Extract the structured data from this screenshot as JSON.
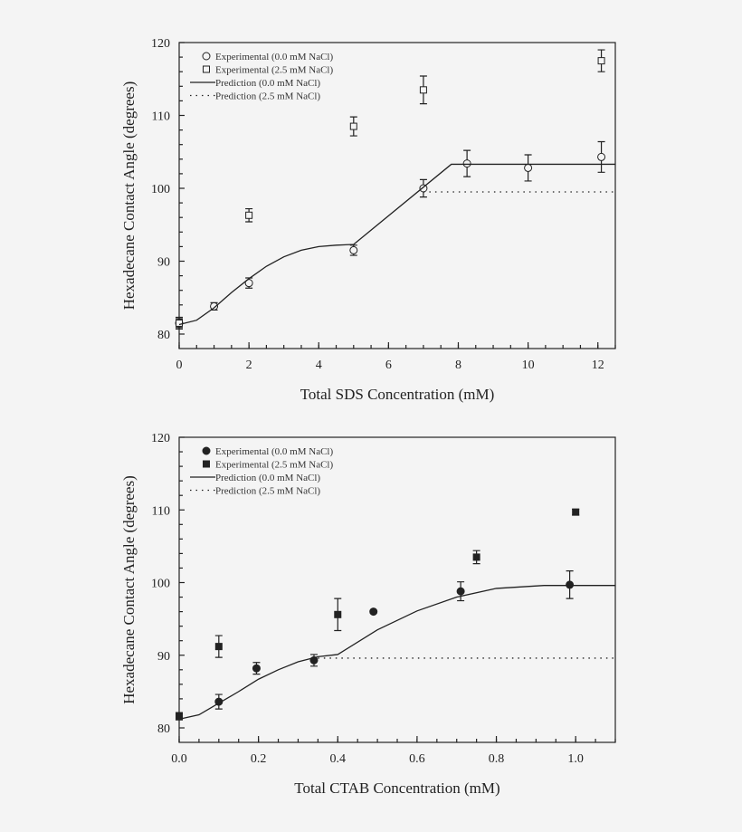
{
  "chart_data": [
    {
      "type": "scatter",
      "xlabel": "Total SDS Concentration (mM)",
      "ylabel": "Hexadecane Contact Angle (degrees)",
      "xlim": [
        0,
        12.5
      ],
      "ylim": [
        80,
        120
      ],
      "xticks": [
        0,
        2,
        4,
        6,
        8,
        10,
        12
      ],
      "yticks": [
        80,
        90,
        100,
        110,
        120
      ],
      "legend_position": "top-left",
      "marker_fill": "open",
      "series": [
        {
          "name": "Experimental (0.0 mM NaCl)",
          "kind": "points",
          "marker": "circle",
          "x": [
            0,
            1,
            2,
            5,
            7,
            8.25,
            10,
            12.1
          ],
          "y": [
            81.5,
            83.8,
            87,
            91.5,
            100,
            103.4,
            102.8,
            104.3
          ],
          "err": [
            0.8,
            0.5,
            0.7,
            0.7,
            1.2,
            1.8,
            1.8,
            2.1
          ]
        },
        {
          "name": "Experimental (2.5 mM NaCl)",
          "kind": "points",
          "marker": "square",
          "x": [
            0,
            2,
            5,
            7,
            12.1
          ],
          "y": [
            81.5,
            96.3,
            108.5,
            113.5,
            117.5
          ],
          "err": [
            0.6,
            0.9,
            1.3,
            1.9,
            1.5
          ]
        },
        {
          "name": "Prediction (0.0 mM NaCl)",
          "kind": "line",
          "style": "solid",
          "x": [
            0,
            0.5,
            1,
            1.5,
            2,
            2.5,
            3,
            3.5,
            4,
            4.5,
            5,
            7.8,
            12.5
          ],
          "y": [
            81.3,
            81.9,
            83.6,
            85.7,
            87.6,
            89.3,
            90.6,
            91.5,
            92.0,
            92.2,
            92.3,
            103.3,
            103.3
          ]
        },
        {
          "name": "Prediction (2.5 mM NaCl)",
          "kind": "line",
          "style": "dotted",
          "x": [
            7,
            12.5
          ],
          "y": [
            99.5,
            99.5
          ]
        }
      ]
    },
    {
      "type": "scatter",
      "xlabel": "Total CTAB Concentration (mM)",
      "ylabel": "Hexadecane Contact Angle (degrees)",
      "xlim": [
        0,
        1.1
      ],
      "ylim": [
        80,
        120
      ],
      "xticks": [
        "0.0",
        "0.2",
        "0.4",
        "0.6",
        "0.8",
        "1.0"
      ],
      "yticks": [
        80,
        90,
        100,
        110,
        120
      ],
      "legend_position": "top-left",
      "marker_fill": "filled",
      "series": [
        {
          "name": "Experimental (0.0 mM NaCl)",
          "kind": "points",
          "marker": "circle",
          "x": [
            0.1,
            0.195,
            0.34,
            0.49,
            0.71,
            0.985
          ],
          "y": [
            83.6,
            88.2,
            89.3,
            96,
            98.8,
            99.7
          ],
          "err": [
            1.0,
            0.8,
            0.8,
            0,
            1.3,
            1.9
          ]
        },
        {
          "name": "Experimental (2.5 mM NaCl)",
          "kind": "points",
          "marker": "square",
          "x": [
            0,
            0.1,
            0.4,
            0.75,
            1.0
          ],
          "y": [
            81.6,
            91.2,
            95.6,
            103.5,
            109.7
          ],
          "err": [
            0.5,
            1.5,
            2.2,
            0.9,
            0.4
          ]
        },
        {
          "name": "Prediction (0.0 mM NaCl)",
          "kind": "line",
          "style": "solid",
          "x": [
            0,
            0.05,
            0.1,
            0.15,
            0.2,
            0.25,
            0.3,
            0.35,
            0.4,
            0.5,
            0.6,
            0.7,
            0.8,
            0.92,
            1.1
          ],
          "y": [
            81.2,
            81.8,
            83.4,
            85.0,
            86.7,
            88.0,
            89.1,
            89.8,
            90.1,
            93.5,
            96.1,
            98.0,
            99.2,
            99.6,
            99.6
          ]
        },
        {
          "name": "Prediction (2.5 mM NaCl)",
          "kind": "line",
          "style": "dotted",
          "x": [
            0.35,
            1.1
          ],
          "y": [
            89.6,
            89.6
          ]
        }
      ]
    }
  ]
}
